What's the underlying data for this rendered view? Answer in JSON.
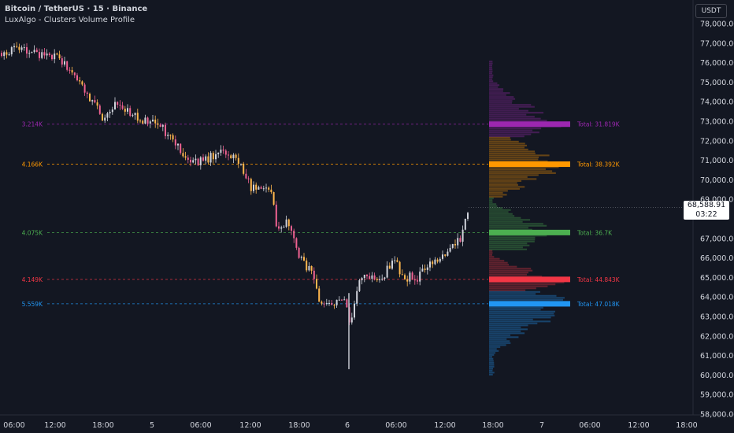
{
  "header": {
    "title": "Bitcoin / TetherUS · 15 · Binance",
    "indicator": "LuxAlgo - Clusters Volume Profile"
  },
  "price_scale": {
    "currency": "USDT",
    "labels": [
      "78,000.00",
      "77,000.00",
      "76,000.00",
      "75,000.00",
      "74,000.00",
      "73,000.00",
      "72,000.00",
      "71,000.00",
      "70,000.00",
      "69,000.00",
      "67,000.00",
      "66,000.00",
      "65,000.00",
      "64,000.00",
      "63,000.00",
      "62,000.00",
      "61,000.00",
      "60,000.00",
      "59,000.00",
      "58,000.00"
    ],
    "current_price": "68,588.91",
    "countdown": "03:22"
  },
  "time_axis": {
    "labels": [
      "06:00",
      "12:00",
      "18:00",
      "5",
      "06:00",
      "12:00",
      "18:00",
      "6",
      "06:00",
      "12:00",
      "18:00",
      "7",
      "06:00",
      "12:00",
      "18:00"
    ]
  },
  "clusters": [
    {
      "left_label": "3.214K",
      "total": "Total: 31.819K",
      "color": "#9c27b0",
      "price": 72850
    },
    {
      "left_label": "4.166K",
      "total": "Total: 38.392K",
      "color": "#ff9800",
      "price": 70800
    },
    {
      "left_label": "4.075K",
      "total": "Total: 36.7K",
      "color": "#4caf50",
      "price": 67300
    },
    {
      "left_label": "4.149K",
      "total": "Total: 44.843K",
      "color": "#f23645",
      "price": 64900
    },
    {
      "left_label": "5.559K",
      "total": "Total: 47.018K",
      "color": "#2196f3",
      "price": 63650
    }
  ],
  "colors": {
    "background": "#131722",
    "candle_up": "#d1d4dc",
    "candle_down": "#ffb74d",
    "grid": "#1e222d"
  }
}
